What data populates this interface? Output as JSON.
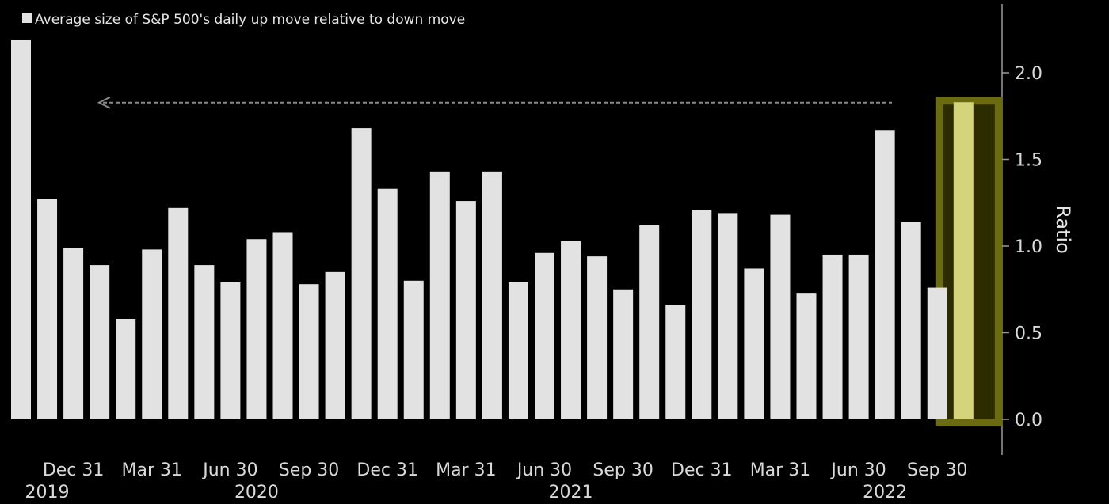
{
  "chart_data": {
    "type": "bar",
    "legend": {
      "label": "Average size of S&P 500's daily up move relative to down move",
      "position": "top-left"
    },
    "ylabel": "Ratio",
    "xlabel": "",
    "ylim": [
      0,
      2.2
    ],
    "yticks": [
      0.0,
      0.5,
      1.0,
      1.5,
      2.0
    ],
    "ytick_labels": [
      "0.0",
      "0.5",
      "1.0",
      "1.5",
      "2.0"
    ],
    "series_color": "#e2e2e2",
    "highlight_color": "#d4d47a",
    "highlight_border": "#6b6b12",
    "reference_line": {
      "value": 1.83,
      "style": "dashed-arrow",
      "color": "#8a8a8a"
    },
    "x_tick_labels": [
      {
        "label": "Dec 31",
        "bar_index": 2
      },
      {
        "label": "Mar 31",
        "bar_index": 5
      },
      {
        "label": "Jun 30",
        "bar_index": 8
      },
      {
        "label": "Sep 30",
        "bar_index": 11
      },
      {
        "label": "Dec 31",
        "bar_index": 14
      },
      {
        "label": "Mar 31",
        "bar_index": 17
      },
      {
        "label": "Jun 30",
        "bar_index": 20
      },
      {
        "label": "Sep 30",
        "bar_index": 23
      },
      {
        "label": "Dec 31",
        "bar_index": 26
      },
      {
        "label": "Mar 31",
        "bar_index": 29
      },
      {
        "label": "Jun 30",
        "bar_index": 32
      },
      {
        "label": "Sep 30",
        "bar_index": 35
      }
    ],
    "year_labels": [
      {
        "label": "2019",
        "bar_index": 1
      },
      {
        "label": "2020",
        "bar_index": 9
      },
      {
        "label": "2021",
        "bar_index": 21
      },
      {
        "label": "2022",
        "bar_index": 33
      }
    ],
    "values": [
      2.19,
      1.27,
      0.99,
      0.89,
      0.58,
      0.98,
      1.22,
      0.89,
      0.79,
      1.04,
      1.08,
      0.78,
      0.85,
      1.68,
      1.33,
      0.8,
      1.43,
      1.26,
      1.43,
      0.79,
      0.96,
      1.03,
      0.94,
      0.75,
      1.12,
      0.66,
      1.21,
      1.19,
      0.87,
      1.18,
      0.73,
      0.95,
      0.95,
      1.67,
      1.14,
      0.76,
      1.83
    ],
    "highlighted_index": 36
  }
}
